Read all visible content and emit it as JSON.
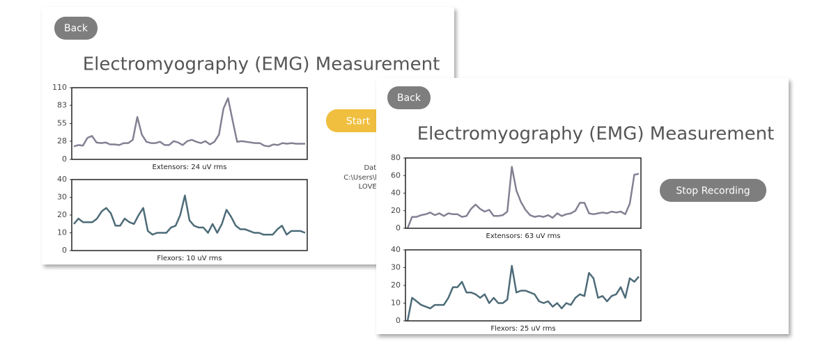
{
  "windows": [
    {
      "back": "Back",
      "title": "Electromyography (EMG) Measurement",
      "button": "Start",
      "note": [
        "Data is",
        "C:\\Users\\hongk\\On",
        "LOVE GUI/"
      ]
    },
    {
      "back": "Back",
      "title": "Electromyography (EMG) Measurement",
      "button": "Stop Recording"
    }
  ],
  "chart_data": [
    {
      "type": "line",
      "caption": "Extensors: 24 uV rms",
      "color": "#857f93",
      "ylim": [
        0,
        110
      ],
      "yticks": [
        0,
        28,
        55,
        83,
        110
      ],
      "values": [
        20,
        22,
        21,
        33,
        36,
        26,
        25,
        26,
        23,
        23,
        22,
        25,
        25,
        30,
        65,
        38,
        27,
        25,
        25,
        27,
        22,
        22,
        28,
        26,
        22,
        28,
        30,
        27,
        25,
        28,
        23,
        27,
        38,
        78,
        94,
        60,
        27,
        28,
        27,
        26,
        25,
        25,
        21,
        20,
        23,
        22,
        25,
        24,
        25,
        24,
        24,
        24
      ]
    },
    {
      "type": "line",
      "caption": "Flexors: 10 uV rms",
      "color": "#4d6b78",
      "ylim": [
        0,
        40
      ],
      "yticks": [
        0,
        10,
        20,
        30,
        40
      ],
      "values": [
        15,
        18,
        16,
        16,
        16,
        18,
        22,
        24,
        21,
        14,
        14,
        18,
        16,
        15,
        20,
        24,
        11,
        9,
        10,
        10,
        10,
        13,
        14,
        20,
        31,
        17,
        14,
        13,
        13,
        10,
        15,
        10,
        15,
        23,
        19,
        14,
        12,
        12,
        11,
        10,
        10,
        9,
        9,
        9,
        12,
        14,
        9,
        11,
        11,
        11,
        10
      ]
    },
    {
      "type": "line",
      "caption": "Extensors: 63 uV rms",
      "color": "#857f93",
      "ylim": [
        0,
        80
      ],
      "yticks": [
        0,
        20,
        40,
        60,
        80
      ],
      "values": [
        0,
        13,
        13,
        15,
        16,
        18,
        15,
        17,
        14,
        17,
        16,
        16,
        13,
        14,
        22,
        27,
        22,
        19,
        21,
        14,
        14,
        15,
        19,
        70,
        43,
        30,
        21,
        15,
        13,
        14,
        13,
        15,
        12,
        17,
        14,
        16,
        17,
        20,
        29,
        29,
        17,
        16,
        17,
        18,
        17,
        19,
        18,
        19,
        16,
        28,
        61,
        62
      ]
    },
    {
      "type": "line",
      "caption": "Flexors: 25 uV rms",
      "color": "#4d6b78",
      "ylim": [
        0,
        40
      ],
      "yticks": [
        0,
        10,
        20,
        30,
        40
      ],
      "values": [
        0,
        13,
        11,
        9,
        8,
        7,
        9,
        9,
        9,
        13,
        19,
        19,
        22,
        16,
        16,
        15,
        13,
        15,
        10,
        13,
        10,
        10,
        12,
        31,
        16,
        17,
        17,
        16,
        15,
        11,
        10,
        11,
        8,
        10,
        7,
        10,
        9,
        13,
        15,
        14,
        27,
        24,
        13,
        14,
        11,
        14,
        15,
        19,
        13,
        24,
        22,
        25
      ]
    }
  ]
}
